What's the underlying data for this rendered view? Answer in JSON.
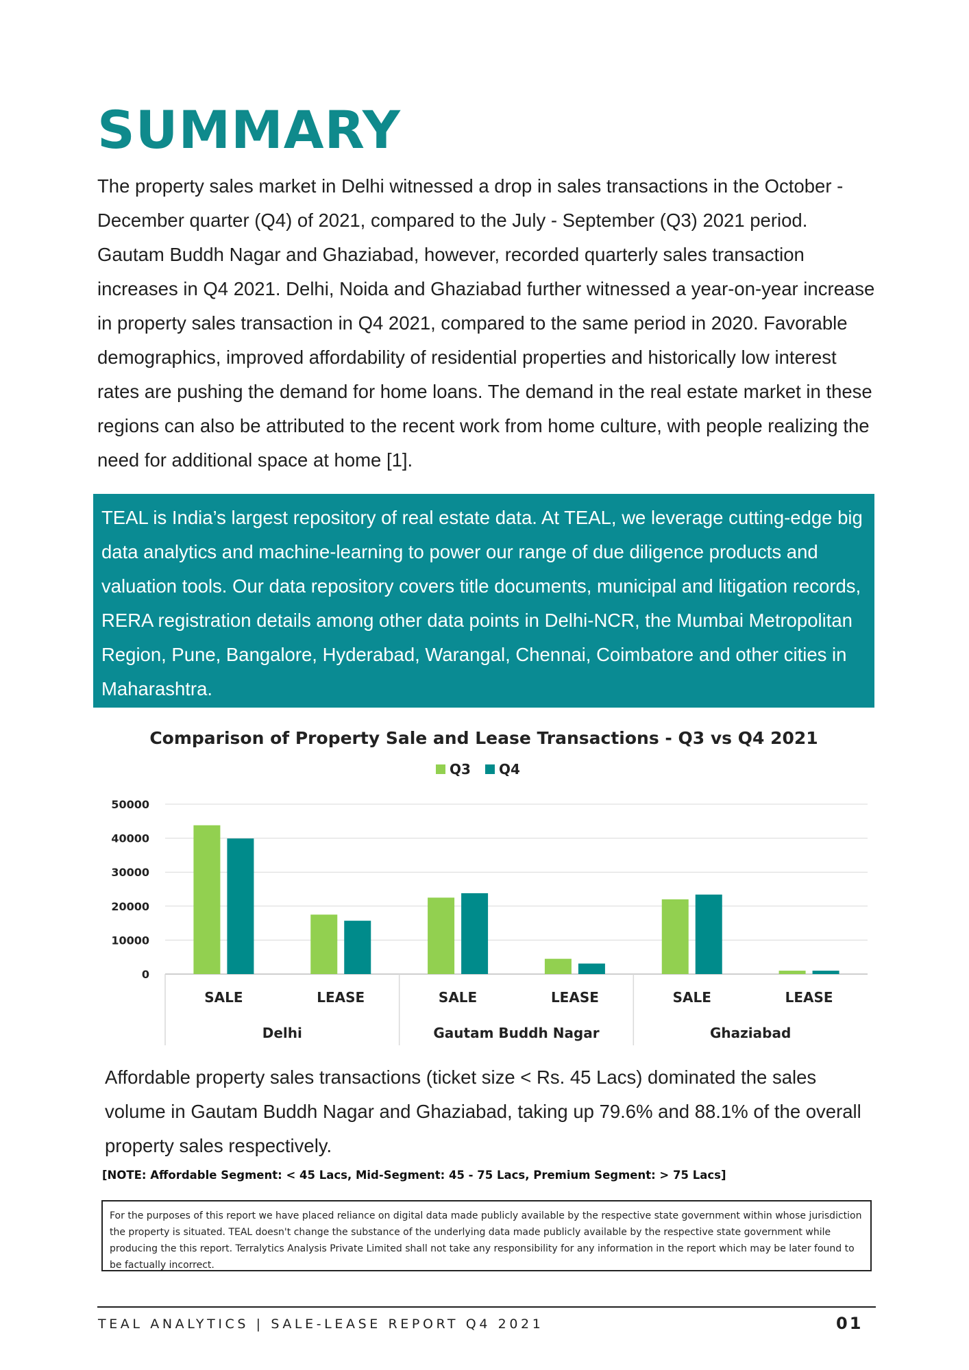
{
  "title": "SUMMARY",
  "intro_text": "The property sales market in Delhi witnessed a drop in sales transactions in the October - December quarter (Q4) of 2021, compared to the July - September (Q3) 2021 period. Gautam Buddh Nagar and Ghaziabad, however, recorded quarterly sales transaction increases in Q4 2021. Delhi, Noida and Ghaziabad further witnessed a year-on-year increase in property sales transaction in Q4 2021, compared to the same period in 2020. Favorable demographics, improved affordability of residential properties and historically low interest rates are pushing the demand for home loans. The demand in the real estate market in these regions can also be attributed to the recent work from home culture, with people realizing the need for additional space at home [1].",
  "about_text": "TEAL is India’s largest repository of real estate data. At TEAL, we leverage cutting-edge big data analytics and machine-learning to power our range of due diligence products and valuation tools. Our data repository covers title documents, municipal and litigation records, RERA registration details among other data points in Delhi-NCR, the Mumbai Metropolitan Region, Pune, Bangalore, Hyderabad, Warangal, Chennai, Coimbatore and other cities in Maharashtra.",
  "chart_data": {
    "type": "bar",
    "title": "Comparison of Property Sale and Lease Transactions  - Q3 vs Q4 2021",
    "categories": [
      "SALE",
      "LEASE",
      "SALE",
      "LEASE",
      "SALE",
      "LEASE"
    ],
    "groups": [
      {
        "label": "Delhi",
        "span": 2
      },
      {
        "label": "Gautam Buddh Nagar",
        "span": 2
      },
      {
        "label": "Ghaziabad",
        "span": 2
      }
    ],
    "series": [
      {
        "name": "Q3",
        "color": "#92d050",
        "values": [
          43800,
          17500,
          22500,
          4500,
          22000,
          1000
        ]
      },
      {
        "name": "Q4",
        "color": "#008b8b",
        "values": [
          39900,
          15700,
          23800,
          3100,
          23400,
          1000
        ]
      }
    ],
    "yticks": [
      "0",
      "10000",
      "20000",
      "30000",
      "40000",
      "50000"
    ],
    "ylim": [
      0,
      50000
    ],
    "grid": true,
    "legend": "top-center"
  },
  "after_chart_text": "Affordable property sales transactions (ticket size < Rs. 45 Lacs) dominated the sales volume in Gautam Buddh Nagar  and Ghaziabad, taking up 79.6% and 88.1% of the overall property sales respectively.",
  "note": "[NOTE: Affordable Segment: < 45 Lacs, Mid-Segment: 45 - 75 Lacs, Premium Segment: > 75 Lacs]",
  "disclaimer": "For the purposes of this report we have placed reliance on digital data made publicly available by the respective state government within whose jurisdiction the property is situated. TEAL doesn't change the substance of the underlying data made publicly available by the respective state government while producing the this report. Terralytics Analysis Private Limited shall not take any responsibility for any information in the report which may be later found to be factually incorrect.",
  "footer": {
    "left": "TEAL ANALYTICS | SALE-LEASE REPORT Q4 2021",
    "page": "01"
  }
}
